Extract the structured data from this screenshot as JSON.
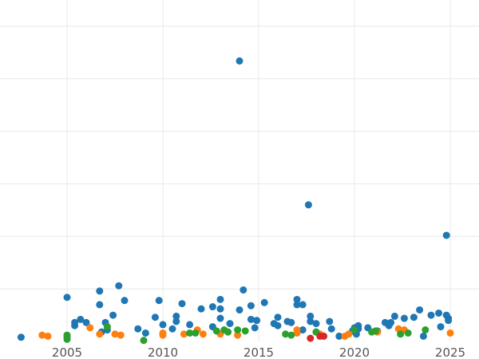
{
  "chart_data": {
    "type": "scatter",
    "title": "",
    "xlabel": "",
    "ylabel": "",
    "xlim": [
      2001.5,
      2026.5
    ],
    "ylim": [
      0,
      6.5
    ],
    "grid": true,
    "x_ticks": [
      2005,
      2010,
      2015,
      2020,
      2025
    ],
    "x_tick_labels": [
      "2005",
      "2010",
      "2015",
      "2020",
      "2025"
    ],
    "y_ticks": [
      1,
      2,
      3,
      4,
      5,
      6
    ],
    "y_tick_labels": [],
    "series": [
      {
        "color": "#1f77b4",
        "points": [
          [
            2002.6,
            0.08
          ],
          [
            2005.0,
            0.84
          ],
          [
            2005.4,
            0.3
          ],
          [
            2005.4,
            0.36
          ],
          [
            2005.7,
            0.42
          ],
          [
            2006.0,
            0.36
          ],
          [
            2006.7,
            0.96
          ],
          [
            2006.7,
            0.7
          ],
          [
            2006.8,
            0.18
          ],
          [
            2007.0,
            0.36
          ],
          [
            2007.1,
            0.22
          ],
          [
            2007.4,
            0.5
          ],
          [
            2007.7,
            1.06
          ],
          [
            2008.0,
            0.78
          ],
          [
            2008.7,
            0.24
          ],
          [
            2009.1,
            0.16
          ],
          [
            2009.6,
            0.46
          ],
          [
            2009.8,
            0.78
          ],
          [
            2010.0,
            0.32
          ],
          [
            2010.5,
            0.24
          ],
          [
            2010.7,
            0.38
          ],
          [
            2010.7,
            0.48
          ],
          [
            2011.0,
            0.72
          ],
          [
            2011.4,
            0.32
          ],
          [
            2012.0,
            0.62
          ],
          [
            2012.6,
            0.66
          ],
          [
            2012.6,
            0.28
          ],
          [
            2013.0,
            0.62
          ],
          [
            2013.0,
            0.8
          ],
          [
            2013.0,
            0.44
          ],
          [
            2013.5,
            0.34
          ],
          [
            2014.0,
            5.34
          ],
          [
            2014.0,
            0.6
          ],
          [
            2014.2,
            0.98
          ],
          [
            2014.6,
            0.68
          ],
          [
            2014.6,
            0.42
          ],
          [
            2014.8,
            0.26
          ],
          [
            2014.9,
            0.4
          ],
          [
            2015.3,
            0.74
          ],
          [
            2015.8,
            0.34
          ],
          [
            2016.0,
            0.3
          ],
          [
            2016.0,
            0.46
          ],
          [
            2016.5,
            0.38
          ],
          [
            2016.7,
            0.36
          ],
          [
            2017.0,
            0.8
          ],
          [
            2017.0,
            0.7
          ],
          [
            2017.3,
            0.7
          ],
          [
            2017.3,
            0.22
          ],
          [
            2017.6,
            2.6
          ],
          [
            2017.7,
            0.48
          ],
          [
            2017.7,
            0.38
          ],
          [
            2018.0,
            0.34
          ],
          [
            2018.0,
            0.18
          ],
          [
            2018.7,
            0.38
          ],
          [
            2018.8,
            0.24
          ],
          [
            2019.2,
            0.1
          ],
          [
            2019.9,
            0.2
          ],
          [
            2020.0,
            0.26
          ],
          [
            2020.1,
            0.14
          ],
          [
            2020.2,
            0.24
          ],
          [
            2020.2,
            0.3
          ],
          [
            2020.7,
            0.26
          ],
          [
            2021.2,
            0.2
          ],
          [
            2021.6,
            0.36
          ],
          [
            2021.8,
            0.3
          ],
          [
            2021.9,
            0.36
          ],
          [
            2022.1,
            0.48
          ],
          [
            2022.6,
            0.44
          ],
          [
            2023.1,
            0.46
          ],
          [
            2023.4,
            0.6
          ],
          [
            2023.6,
            0.1
          ],
          [
            2024.0,
            0.5
          ],
          [
            2024.4,
            0.54
          ],
          [
            2024.5,
            0.28
          ],
          [
            2024.8,
            0.5
          ],
          [
            2024.8,
            2.02
          ],
          [
            2024.9,
            0.44
          ],
          [
            2024.9,
            0.4
          ]
        ]
      },
      {
        "color": "#ff7f0e",
        "points": [
          [
            2003.7,
            0.12
          ],
          [
            2004.0,
            0.1
          ],
          [
            2006.2,
            0.26
          ],
          [
            2006.7,
            0.14
          ],
          [
            2007.5,
            0.14
          ],
          [
            2007.8,
            0.12
          ],
          [
            2010.0,
            0.16
          ],
          [
            2010.0,
            0.12
          ],
          [
            2011.1,
            0.14
          ],
          [
            2011.8,
            0.22
          ],
          [
            2012.1,
            0.14
          ],
          [
            2013.0,
            0.14
          ],
          [
            2013.9,
            0.12
          ],
          [
            2017.0,
            0.16
          ],
          [
            2017.0,
            0.22
          ],
          [
            2018.2,
            0.14
          ],
          [
            2019.5,
            0.1
          ],
          [
            2019.7,
            0.14
          ],
          [
            2021.2,
            0.18
          ],
          [
            2022.3,
            0.24
          ],
          [
            2022.6,
            0.22
          ],
          [
            2025.0,
            0.16
          ]
        ]
      },
      {
        "color": "#2ca02c",
        "points": [
          [
            2005.0,
            0.08
          ],
          [
            2005.0,
            0.12
          ],
          [
            2005.0,
            0.04
          ],
          [
            2007.1,
            0.28
          ],
          [
            2009.0,
            0.02
          ],
          [
            2011.4,
            0.16
          ],
          [
            2011.7,
            0.16
          ],
          [
            2012.8,
            0.2
          ],
          [
            2013.2,
            0.22
          ],
          [
            2013.4,
            0.18
          ],
          [
            2013.9,
            0.22
          ],
          [
            2014.3,
            0.2
          ],
          [
            2016.4,
            0.14
          ],
          [
            2016.7,
            0.12
          ],
          [
            2018.0,
            0.18
          ],
          [
            2020.0,
            0.22
          ],
          [
            2020.9,
            0.18
          ],
          [
            2021.1,
            0.2
          ],
          [
            2022.4,
            0.14
          ],
          [
            2022.8,
            0.16
          ],
          [
            2023.7,
            0.22
          ]
        ]
      },
      {
        "color": "#d62728",
        "points": [
          [
            2017.7,
            0.06
          ],
          [
            2018.2,
            0.1
          ],
          [
            2018.4,
            0.1
          ]
        ]
      }
    ]
  }
}
